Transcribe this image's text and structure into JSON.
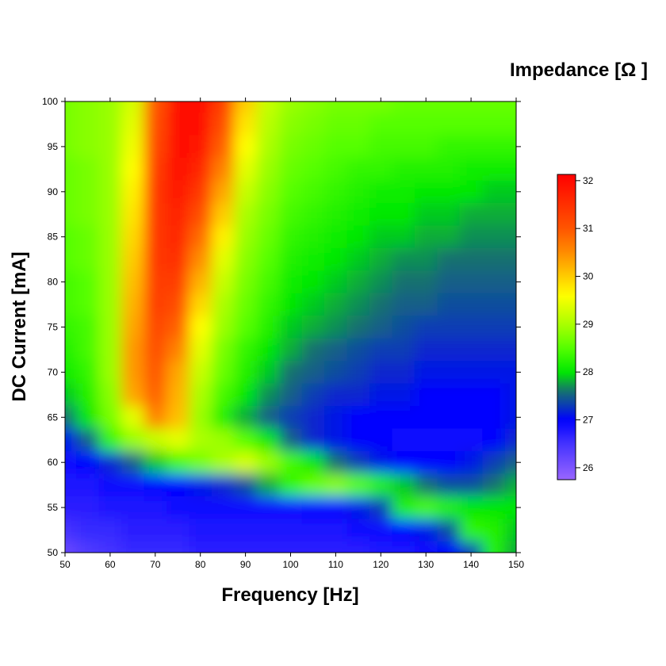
{
  "chart_data": {
    "type": "heatmap",
    "title": "",
    "xlabel": "Frequency [Hz]",
    "ylabel": "DC Current [mA]",
    "colorbar_label": "Impedance [Ω ]",
    "xlim": [
      50,
      150
    ],
    "ylim": [
      50,
      100
    ],
    "clim": [
      25.75,
      32.13
    ],
    "x_ticks": [
      50,
      60,
      70,
      80,
      90,
      100,
      110,
      120,
      130,
      140,
      150
    ],
    "y_ticks": [
      50,
      55,
      60,
      65,
      70,
      75,
      80,
      85,
      90,
      95,
      100
    ],
    "colorbar_ticks": [
      26,
      27,
      28,
      29,
      30,
      31,
      32
    ],
    "colormap": [
      [
        25.75,
        "#9966ff"
      ],
      [
        26.5,
        "#4433ff"
      ],
      [
        27.0,
        "#0000ff"
      ],
      [
        27.3,
        "#0a3cb4"
      ],
      [
        27.6,
        "#177070"
      ],
      [
        28.0,
        "#00e800"
      ],
      [
        28.5,
        "#55ff00"
      ],
      [
        29.0,
        "#aaff00"
      ],
      [
        29.6,
        "#ffff00"
      ],
      [
        30.0,
        "#ffcc00"
      ],
      [
        30.5,
        "#ff8c00"
      ],
      [
        31.0,
        "#ff5500"
      ],
      [
        32.13,
        "#ff0000"
      ]
    ],
    "x": [
      50,
      55,
      60,
      65,
      70,
      75,
      80,
      85,
      90,
      95,
      100,
      105,
      110,
      115,
      120,
      125,
      130,
      135,
      140,
      145,
      150
    ],
    "y": [
      100,
      97.5,
      95,
      92.5,
      90,
      87.5,
      85,
      82.5,
      80,
      77.5,
      75,
      72.5,
      70,
      67.5,
      65,
      62.5,
      60,
      57.5,
      55,
      52.5,
      50
    ],
    "z": [
      [
        28.7,
        28.8,
        28.9,
        29.3,
        31.0,
        31.9,
        32.0,
        31.3,
        30.0,
        29.2,
        28.9,
        28.8,
        28.7,
        28.7,
        28.7,
        28.6,
        28.6,
        28.6,
        28.6,
        28.6,
        28.6
      ],
      [
        28.7,
        28.8,
        28.9,
        29.4,
        31.1,
        31.9,
        31.9,
        31.1,
        29.8,
        29.1,
        28.8,
        28.7,
        28.6,
        28.6,
        28.5,
        28.5,
        28.5,
        28.5,
        28.5,
        28.5,
        28.5
      ],
      [
        28.7,
        28.8,
        28.9,
        29.5,
        31.2,
        31.9,
        31.8,
        30.9,
        29.6,
        29.0,
        28.7,
        28.6,
        28.5,
        28.5,
        28.4,
        28.4,
        28.4,
        28.3,
        28.3,
        28.3,
        28.3
      ],
      [
        28.6,
        28.7,
        28.9,
        29.6,
        31.3,
        31.9,
        31.6,
        30.6,
        29.4,
        28.9,
        28.6,
        28.5,
        28.4,
        28.3,
        28.3,
        28.2,
        28.2,
        28.2,
        28.1,
        28.1,
        28.1
      ],
      [
        28.6,
        28.7,
        28.9,
        29.7,
        31.4,
        31.8,
        31.4,
        30.3,
        29.2,
        28.8,
        28.5,
        28.4,
        28.3,
        28.2,
        28.1,
        28.1,
        28.0,
        28.0,
        28.0,
        27.9,
        27.9
      ],
      [
        28.6,
        28.7,
        28.9,
        29.8,
        31.4,
        31.7,
        31.1,
        30.0,
        29.0,
        28.7,
        28.4,
        28.3,
        28.2,
        28.1,
        28.0,
        28.0,
        27.9,
        27.9,
        27.8,
        27.8,
        27.8
      ],
      [
        28.5,
        28.6,
        28.9,
        29.9,
        31.4,
        31.6,
        30.8,
        29.7,
        28.9,
        28.6,
        28.3,
        28.2,
        28.1,
        28.0,
        27.9,
        27.9,
        27.8,
        27.8,
        27.7,
        27.7,
        27.7
      ],
      [
        28.5,
        28.6,
        28.9,
        30.0,
        31.4,
        31.5,
        30.5,
        29.4,
        28.8,
        28.5,
        28.2,
        28.1,
        28.0,
        27.9,
        27.8,
        27.7,
        27.7,
        27.6,
        27.6,
        27.6,
        27.6
      ],
      [
        28.4,
        28.5,
        28.9,
        30.1,
        31.3,
        31.3,
        30.2,
        29.2,
        28.7,
        28.4,
        28.1,
        28.0,
        27.9,
        27.8,
        27.7,
        27.6,
        27.6,
        27.5,
        27.5,
        27.5,
        27.5
      ],
      [
        28.4,
        28.5,
        28.9,
        30.2,
        31.3,
        31.1,
        29.9,
        29.0,
        28.6,
        28.3,
        28.0,
        27.9,
        27.8,
        27.7,
        27.6,
        27.5,
        27.5,
        27.4,
        27.4,
        27.4,
        27.4
      ],
      [
        28.3,
        28.4,
        28.9,
        30.3,
        31.2,
        30.9,
        29.6,
        28.9,
        28.5,
        28.2,
        27.9,
        27.8,
        27.7,
        27.6,
        27.5,
        27.4,
        27.3,
        27.3,
        27.3,
        27.3,
        27.3
      ],
      [
        28.2,
        28.4,
        28.9,
        30.4,
        31.1,
        30.6,
        29.4,
        28.7,
        28.3,
        28.0,
        27.8,
        27.6,
        27.5,
        27.4,
        27.3,
        27.3,
        27.2,
        27.2,
        27.2,
        27.2,
        27.2
      ],
      [
        28.1,
        28.3,
        28.9,
        30.4,
        31.0,
        30.3,
        29.2,
        28.6,
        28.2,
        27.9,
        27.6,
        27.5,
        27.4,
        27.3,
        27.2,
        27.2,
        27.1,
        27.1,
        27.1,
        27.1,
        27.1
      ],
      [
        27.9,
        28.2,
        28.8,
        30.3,
        30.9,
        30.2,
        29.0,
        28.4,
        28.0,
        27.7,
        27.5,
        27.3,
        27.2,
        27.2,
        27.1,
        27.1,
        27.0,
        27.0,
        27.0,
        27.0,
        27.1
      ],
      [
        27.6,
        28.0,
        28.7,
        29.4,
        30.6,
        30.1,
        28.9,
        28.2,
        27.8,
        27.5,
        27.3,
        27.2,
        27.1,
        27.0,
        27.0,
        27.0,
        27.0,
        27.0,
        27.0,
        27.0,
        27.1
      ],
      [
        27.1,
        27.5,
        28.3,
        28.9,
        29.2,
        29.4,
        29.0,
        28.9,
        28.5,
        28.0,
        27.5,
        27.2,
        27.1,
        27.0,
        27.0,
        26.9,
        26.9,
        26.9,
        26.9,
        27.0,
        27.2
      ],
      [
        26.9,
        27.0,
        27.2,
        27.5,
        27.9,
        28.4,
        28.7,
        29.0,
        29.3,
        28.9,
        28.4,
        28.0,
        27.6,
        27.3,
        27.1,
        27.0,
        27.0,
        27.0,
        27.1,
        27.3,
        27.5
      ],
      [
        26.8,
        26.8,
        26.9,
        26.9,
        27.0,
        27.0,
        27.1,
        27.2,
        27.4,
        27.8,
        28.3,
        28.6,
        28.8,
        28.5,
        28.2,
        27.9,
        27.6,
        27.4,
        27.4,
        27.6,
        27.8
      ],
      [
        26.7,
        26.7,
        26.8,
        26.8,
        26.8,
        26.9,
        26.9,
        26.9,
        26.9,
        26.9,
        26.9,
        27.0,
        27.0,
        27.1,
        27.3,
        28.2,
        28.4,
        28.2,
        28.0,
        28.0,
        28.0
      ],
      [
        26.5,
        26.6,
        26.6,
        26.7,
        26.7,
        26.7,
        26.8,
        26.8,
        26.8,
        26.8,
        26.8,
        26.8,
        26.8,
        26.9,
        26.9,
        27.0,
        27.1,
        27.4,
        28.3,
        28.2,
        27.9
      ],
      [
        26.2,
        26.4,
        26.5,
        26.6,
        26.6,
        26.6,
        26.7,
        26.7,
        26.7,
        26.7,
        26.7,
        26.7,
        26.7,
        26.7,
        26.8,
        26.8,
        26.9,
        27.0,
        27.3,
        28.2,
        27.8
      ]
    ]
  }
}
